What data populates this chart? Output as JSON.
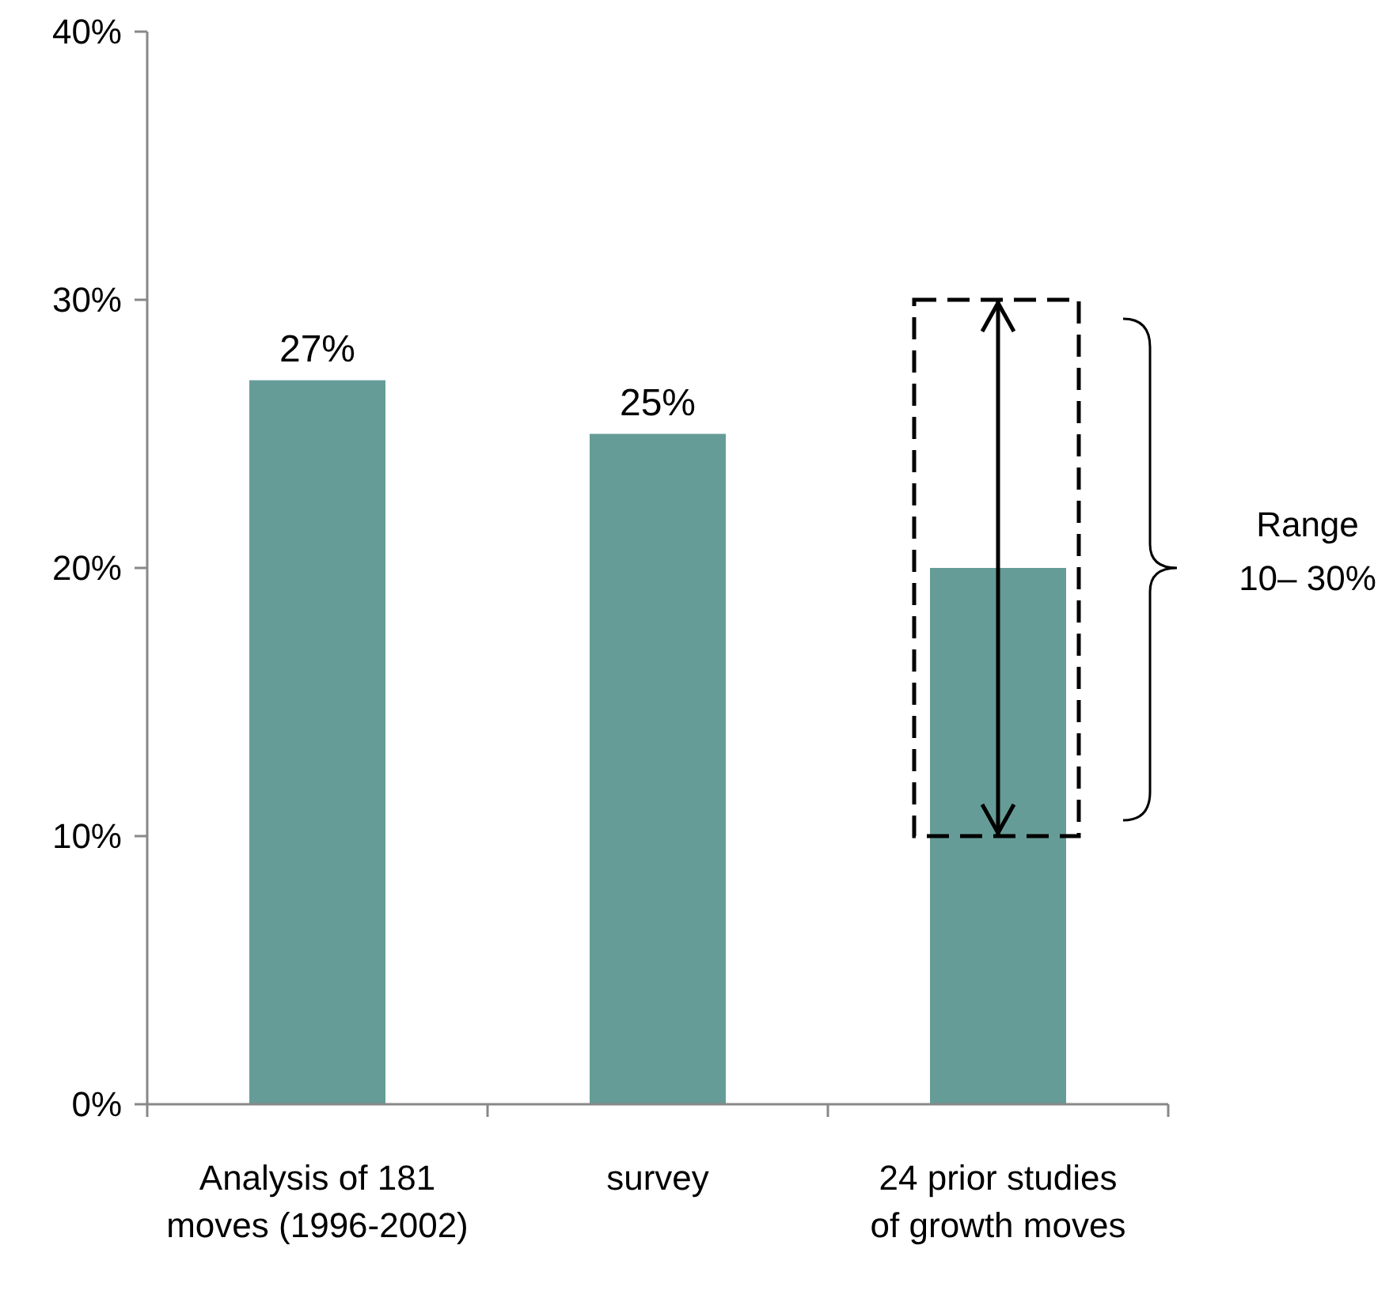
{
  "chart_data": {
    "type": "bar",
    "categories": [
      "Analysis of 181 moves (1996-2002)",
      "survey",
      "24 prior studies of growth moves"
    ],
    "values": [
      27,
      25,
      20
    ],
    "color": "#669c97",
    "value_labels": [
      "27%",
      "25%",
      null
    ],
    "errors": [
      null,
      null,
      [
        10,
        30
      ]
    ],
    "ylim": [
      0,
      40
    ],
    "yticks": [
      {
        "value": 0,
        "label": "0%"
      },
      {
        "value": 10,
        "label": "10%"
      },
      {
        "value": 20,
        "label": "20%"
      },
      {
        "value": 30,
        "label": "30%"
      },
      {
        "value": 40,
        "label": "40%"
      }
    ],
    "grid": false,
    "annotations": [
      "Range 10– 30%"
    ]
  }
}
